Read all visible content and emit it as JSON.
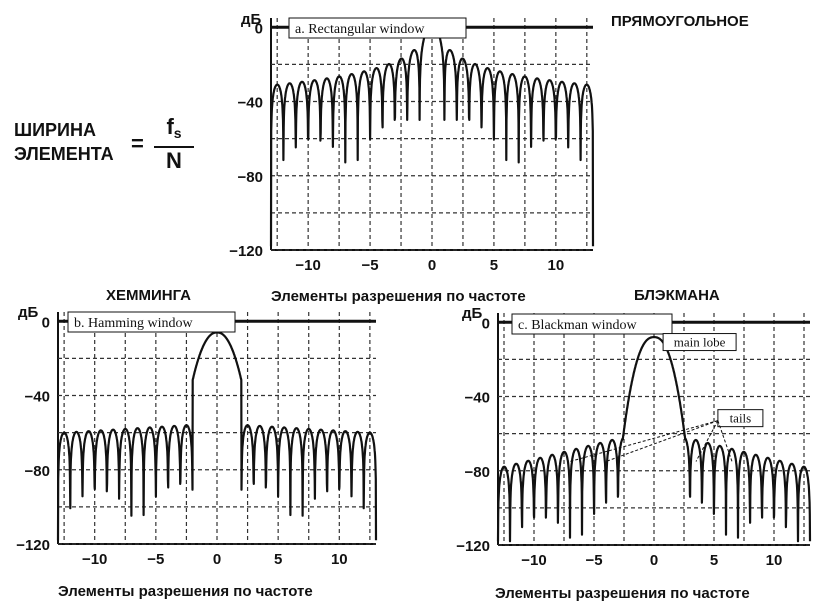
{
  "headings": {
    "rect": "ПРЯМОУГОЛЬНОЕ",
    "hamming": "ХЕММИНГА",
    "blackman": "БЛЭКМАНА"
  },
  "formula": {
    "line1": "ШИРИНА",
    "line2": "ЭЛЕМЕНТА",
    "equals": "=",
    "numerator": "f",
    "numerator_sub": "s",
    "denominator": "N"
  },
  "colors": {
    "ink": "#111111",
    "grid": "#333333",
    "background": "#ffffff"
  },
  "chart_data": [
    {
      "type": "line",
      "id": "rect",
      "title": "a.  Rectangular window",
      "ylabel": "дБ",
      "xlabel": "Элементы разрешения по частоте",
      "xlim": [
        -13,
        13
      ],
      "ylim": [
        -120,
        5
      ],
      "xticks": [
        -10,
        -5,
        0,
        5,
        10
      ],
      "xticklabels": [
        "−10",
        "−5",
        "0",
        "5",
        "10"
      ],
      "yticks": [
        0,
        -40,
        -80,
        -120
      ],
      "yticklabels": [
        "0",
        "−40",
        "−80",
        "−120"
      ],
      "grid": true,
      "reference_line_db": 0,
      "window": "rect",
      "peak_db": 0,
      "annotations": []
    },
    {
      "type": "line",
      "id": "hamming",
      "title": "b.  Hamming window",
      "ylabel": "дБ",
      "xlabel": "Элементы разрешения по частоте",
      "xlim": [
        -13,
        13
      ],
      "ylim": [
        -120,
        5
      ],
      "xticks": [
        -10,
        -5,
        0,
        5,
        10
      ],
      "xticklabels": [
        "−10",
        "−5",
        "0",
        "5",
        "10"
      ],
      "yticks": [
        0,
        -40,
        -80,
        -120
      ],
      "yticklabels": [
        "0",
        "−40",
        "−80",
        "−120"
      ],
      "grid": true,
      "reference_line_db": 0,
      "window": "hamming",
      "peak_db": -6,
      "annotations": []
    },
    {
      "type": "line",
      "id": "blackman",
      "title": "c.  Blackman window",
      "ylabel": "дБ",
      "xlabel": "Элементы разрешения по частоте",
      "xlim": [
        -13,
        13
      ],
      "ylim": [
        -120,
        5
      ],
      "xticks": [
        -10,
        -5,
        0,
        5,
        10
      ],
      "xticklabels": [
        "−10",
        "−5",
        "0",
        "5",
        "10"
      ],
      "yticks": [
        0,
        -40,
        -80,
        -120
      ],
      "yticklabels": [
        "0",
        "−40",
        "−80",
        "−120"
      ],
      "grid": true,
      "reference_line_db": 0,
      "window": "blackman",
      "peak_db": -8,
      "annotations": [
        {
          "text": "main lobe",
          "x": 3.8,
          "y": -12,
          "arrows": []
        },
        {
          "text": "tails",
          "x": 7.2,
          "y": -53,
          "arrows": [
            [
              -7,
              -75
            ],
            [
              -4,
              -75
            ],
            [
              3.5,
              -75
            ],
            [
              6.5,
              -75
            ]
          ]
        }
      ]
    }
  ]
}
